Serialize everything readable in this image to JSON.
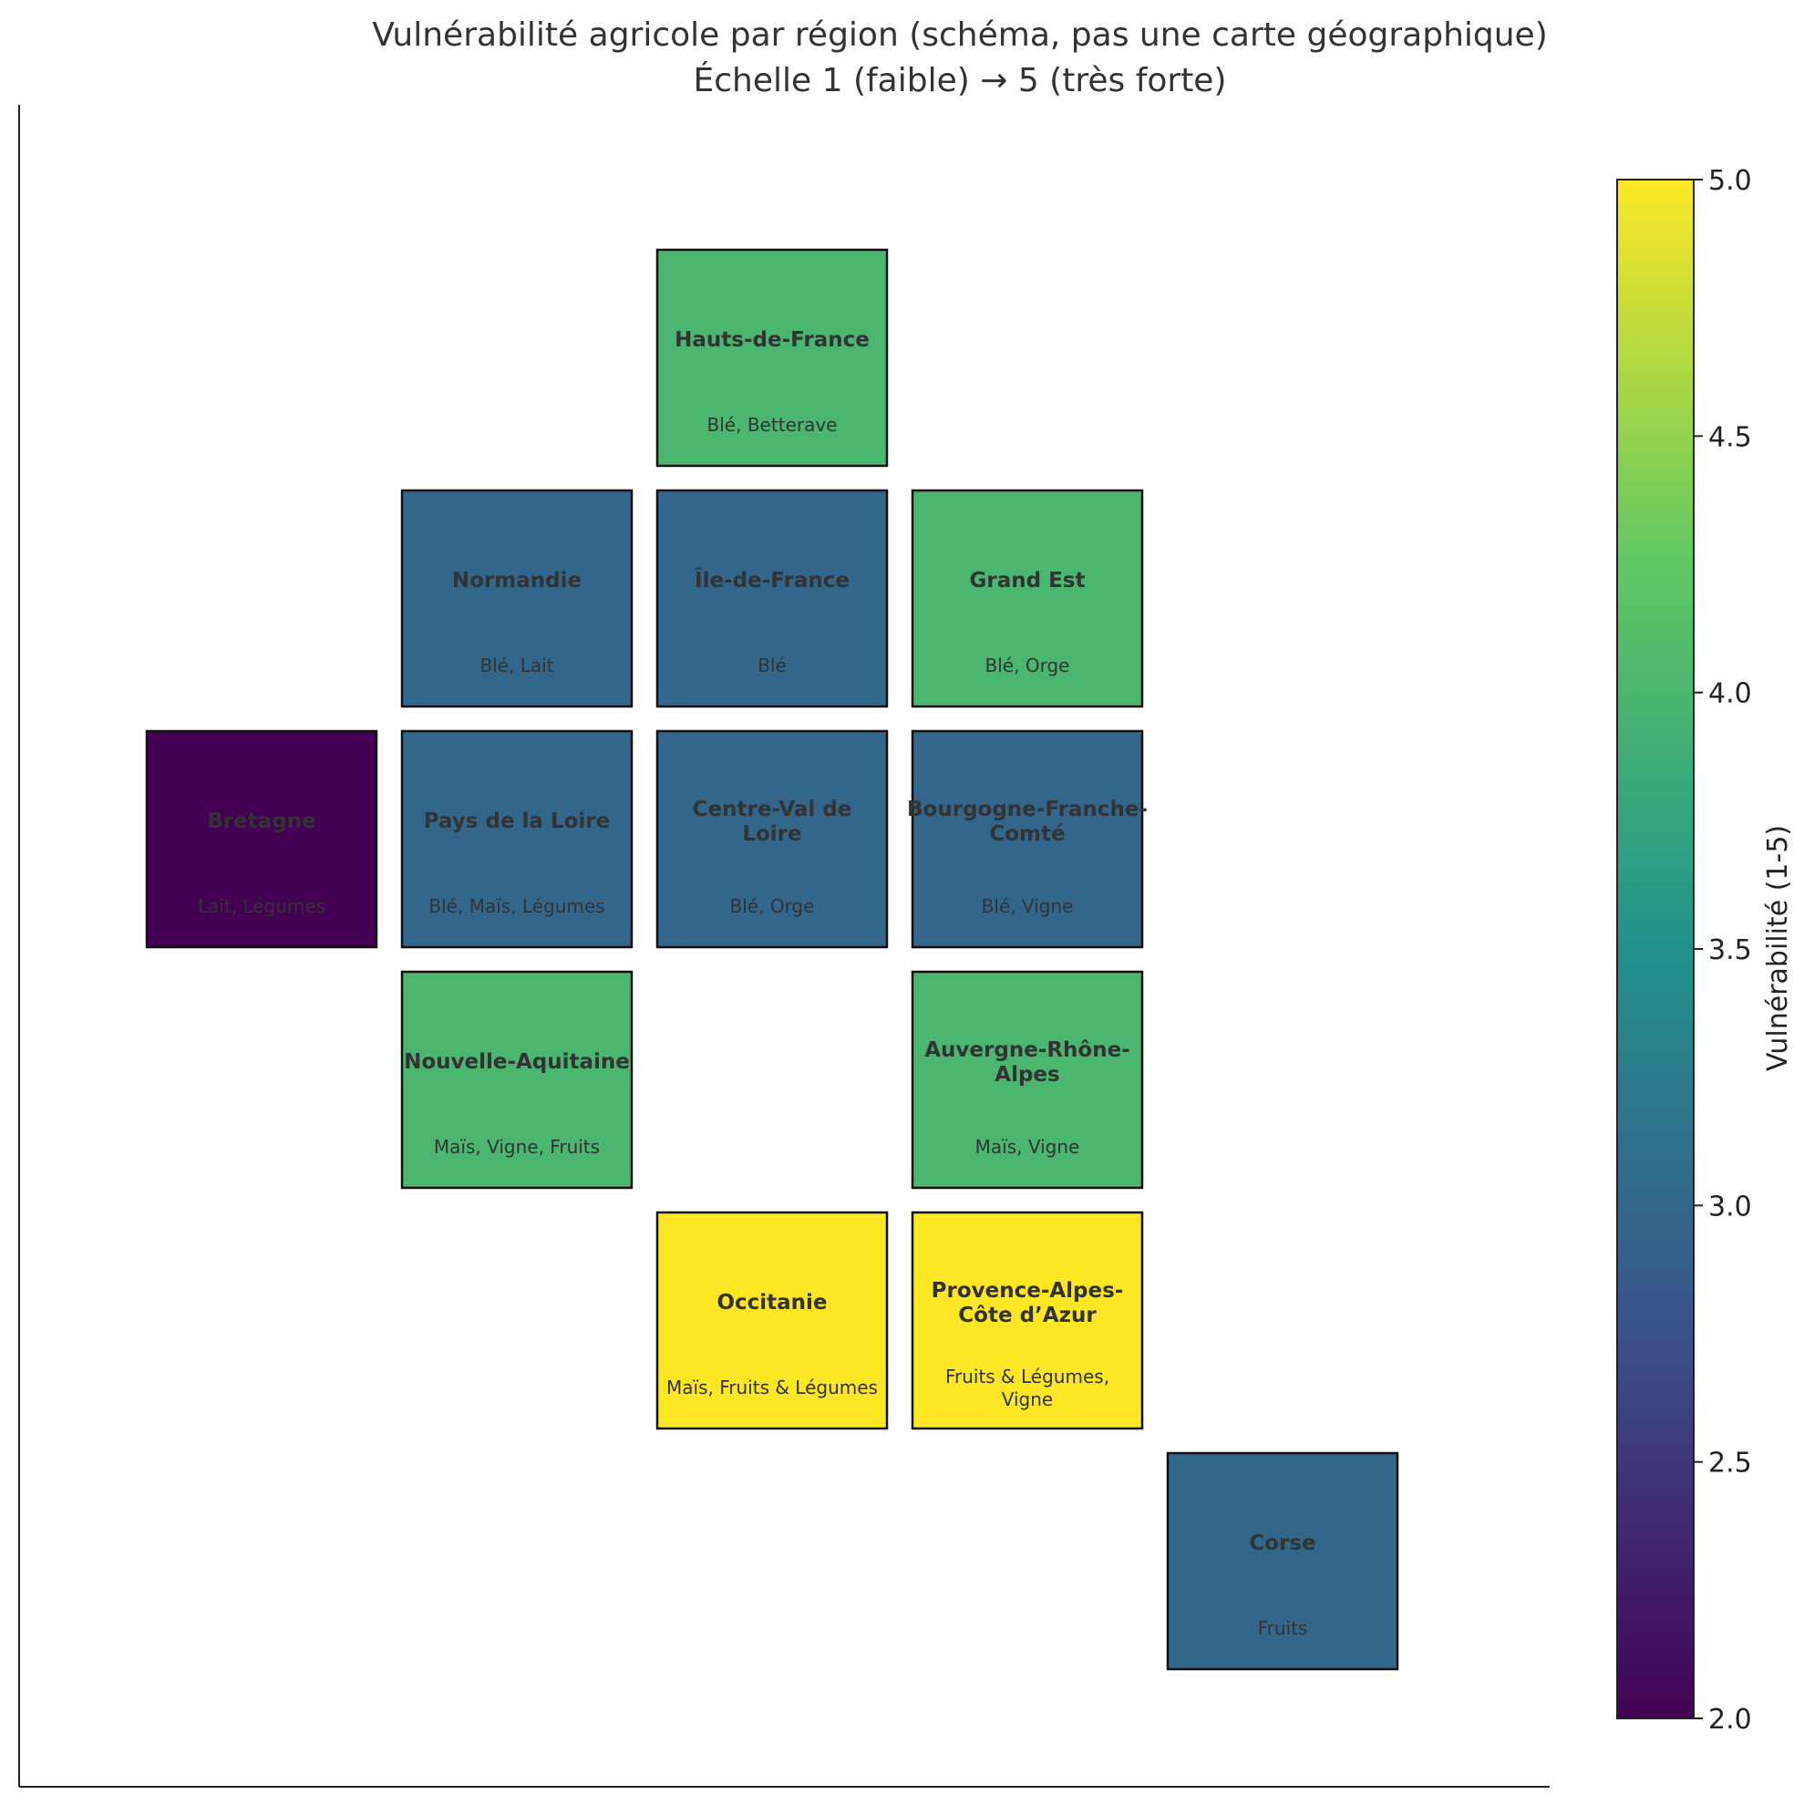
{
  "chart_data": {
    "type": "heatmap",
    "title": "Vulnérabilité agricole par région (schéma, pas une carte géographique)",
    "subtitle": "Échelle 1 (faible) → 5 (très forte)",
    "colorbar": {
      "label": "Vulnérabilité (1-5)",
      "range": [
        2.0,
        5.0
      ],
      "ticks": [
        "2.0",
        "2.5",
        "3.0",
        "3.5",
        "4.0",
        "4.5",
        "5.0"
      ],
      "colormap": "viridis"
    },
    "regions": [
      {
        "name": "Hauts-de-France",
        "crops": "Blé, Betterave",
        "col": 2,
        "row": 0,
        "value": 4
      },
      {
        "name": "Normandie",
        "crops": "Blé, Lait",
        "col": 1,
        "row": 1,
        "value": 3
      },
      {
        "name": "Île-de-France",
        "crops": "Blé",
        "col": 2,
        "row": 1,
        "value": 3
      },
      {
        "name": "Grand Est",
        "crops": "Blé, Orge",
        "col": 3,
        "row": 1,
        "value": 4
      },
      {
        "name": "Bretagne",
        "crops": "Lait, Légumes",
        "col": 0,
        "row": 2,
        "value": 2
      },
      {
        "name": "Pays de la Loire",
        "crops": "Blé, Maïs, Légumes",
        "col": 1,
        "row": 2,
        "value": 3
      },
      {
        "name": "Centre-Val de Loire",
        "crops": "Blé, Orge",
        "col": 2,
        "row": 2,
        "value": 3
      },
      {
        "name": "Bourgogne-Franche-Comté",
        "crops": "Blé, Vigne",
        "col": 3,
        "row": 2,
        "value": 3
      },
      {
        "name": "Nouvelle-Aquitaine",
        "crops": "Maïs, Vigne, Fruits",
        "col": 1,
        "row": 3,
        "value": 4
      },
      {
        "name": "Auvergne-Rhône-Alpes",
        "crops": "Maïs, Vigne",
        "col": 3,
        "row": 3,
        "value": 4
      },
      {
        "name": "Occitanie",
        "crops": "Maïs, Fruits & Légumes",
        "col": 2,
        "row": 4,
        "value": 5
      },
      {
        "name": "Provence-Alpes-Côte d’Azur",
        "crops": "Fruits & Légumes, Vigne",
        "col": 3,
        "row": 4,
        "value": 5
      },
      {
        "name": "Corse",
        "crops": "Fruits",
        "col": 4,
        "row": 5,
        "value": 3
      }
    ]
  }
}
